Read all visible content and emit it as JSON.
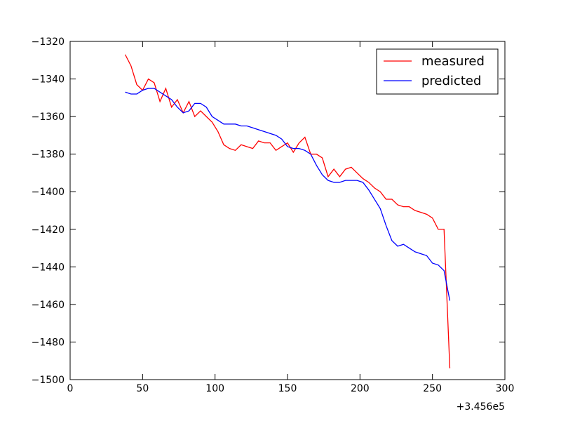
{
  "chart_data": {
    "type": "line",
    "x": [
      38,
      42,
      46,
      50,
      54,
      58,
      62,
      66,
      70,
      74,
      78,
      82,
      86,
      90,
      94,
      98,
      102,
      106,
      110,
      114,
      118,
      122,
      126,
      130,
      134,
      138,
      142,
      146,
      150,
      154,
      158,
      162,
      166,
      170,
      174,
      178,
      182,
      186,
      190,
      194,
      198,
      202,
      206,
      210,
      214,
      218,
      222,
      226,
      230,
      234,
      238,
      242,
      246,
      250,
      254,
      258,
      262
    ],
    "series": [
      {
        "name": "measured",
        "color": "#ff0000",
        "values": [
          -1327,
          -1333,
          -1343,
          -1346,
          -1340,
          -1342,
          -1352,
          -1345,
          -1355,
          -1351,
          -1358,
          -1352,
          -1360,
          -1357,
          -1360,
          -1363,
          -1368,
          -1375,
          -1377,
          -1378,
          -1375,
          -1376,
          -1377,
          -1373,
          -1374,
          -1374,
          -1378,
          -1376,
          -1374,
          -1379,
          -1374,
          -1371,
          -1380,
          -1380,
          -1382,
          -1392,
          -1388,
          -1392,
          -1388,
          -1387,
          -1390,
          -1393,
          -1395,
          -1398,
          -1400,
          -1404,
          -1404,
          -1407,
          -1408,
          -1408,
          -1410,
          -1411,
          -1412,
          -1414,
          -1420,
          -1420,
          -1494
        ]
      },
      {
        "name": "predicted",
        "color": "#0000ff",
        "values": [
          -1347,
          -1348,
          -1348,
          -1346,
          -1345,
          -1345,
          -1347,
          -1349,
          -1351,
          -1355,
          -1358,
          -1357,
          -1353,
          -1353,
          -1355,
          -1360,
          -1362,
          -1364,
          -1364,
          -1364,
          -1365,
          -1365,
          -1366,
          -1367,
          -1368,
          -1369,
          -1370,
          -1372,
          -1376,
          -1377,
          -1377,
          -1378,
          -1380,
          -1386,
          -1391,
          -1394,
          -1395,
          -1395,
          -1394,
          -1394,
          -1394,
          -1395,
          -1399,
          -1404,
          -1409,
          -1418,
          -1426,
          -1429,
          -1428,
          -1430,
          -1432,
          -1433,
          -1434,
          -1438,
          -1439,
          -1442,
          -1458
        ]
      }
    ],
    "xlim": [
      0,
      300
    ],
    "xticks": [
      0,
      50,
      100,
      150,
      200,
      250,
      300
    ],
    "x_offset_label": "+3.456e5",
    "ylim": [
      -1500,
      -1320
    ],
    "yticks": [
      {
        "value": -1500,
        "label": "−1500"
      },
      {
        "value": -1480,
        "label": "−1480"
      },
      {
        "value": -1460,
        "label": "−1460"
      },
      {
        "value": -1440,
        "label": "−1440"
      },
      {
        "value": -1420,
        "label": "−1420"
      },
      {
        "value": -1400,
        "label": "−1400"
      },
      {
        "value": -1380,
        "label": "−1380"
      },
      {
        "value": -1360,
        "label": "−1360"
      },
      {
        "value": -1340,
        "label": "−1340"
      },
      {
        "value": -1320,
        "label": "−1320"
      }
    ],
    "legend": "upper right",
    "grid": false
  }
}
